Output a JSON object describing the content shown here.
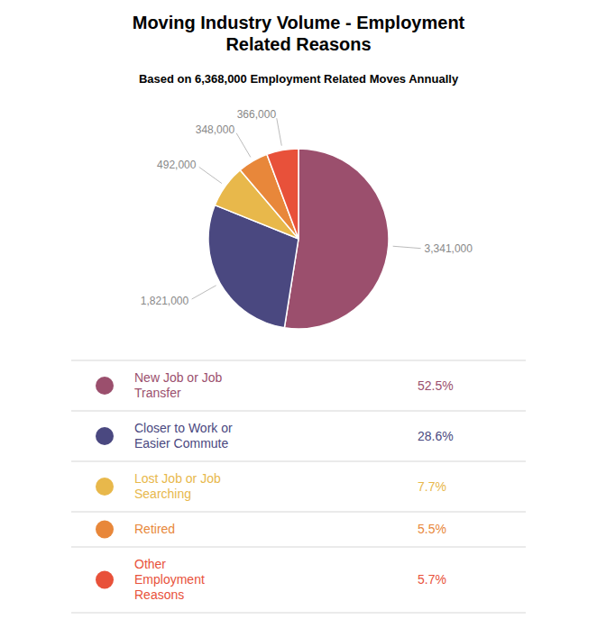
{
  "chart_data": {
    "type": "pie",
    "title": "Moving Industry Volume - Employment\nRelated Reasons",
    "subtitle": "Based on 6,368,000 Employment Related Moves Annually",
    "categories": [
      "New Job or Job\nTransfer",
      "Closer to Work or\nEasier Commute",
      "Lost Job or Job\nSearching",
      "Retired",
      "Other\nEmployment\nReasons"
    ],
    "values": [
      52.5,
      28.6,
      7.7,
      5.5,
      5.7
    ],
    "value_labels": [
      "52.5%",
      "28.6%",
      "7.7%",
      "5.5%",
      "5.7%"
    ],
    "annotations": [
      "3,341,000",
      "1,821,000",
      "492,000",
      "348,000",
      "366,000"
    ],
    "colors": [
      "#9B4F6D",
      "#4A4880",
      "#E8B84B",
      "#E8873A",
      "#E8513A"
    ]
  }
}
